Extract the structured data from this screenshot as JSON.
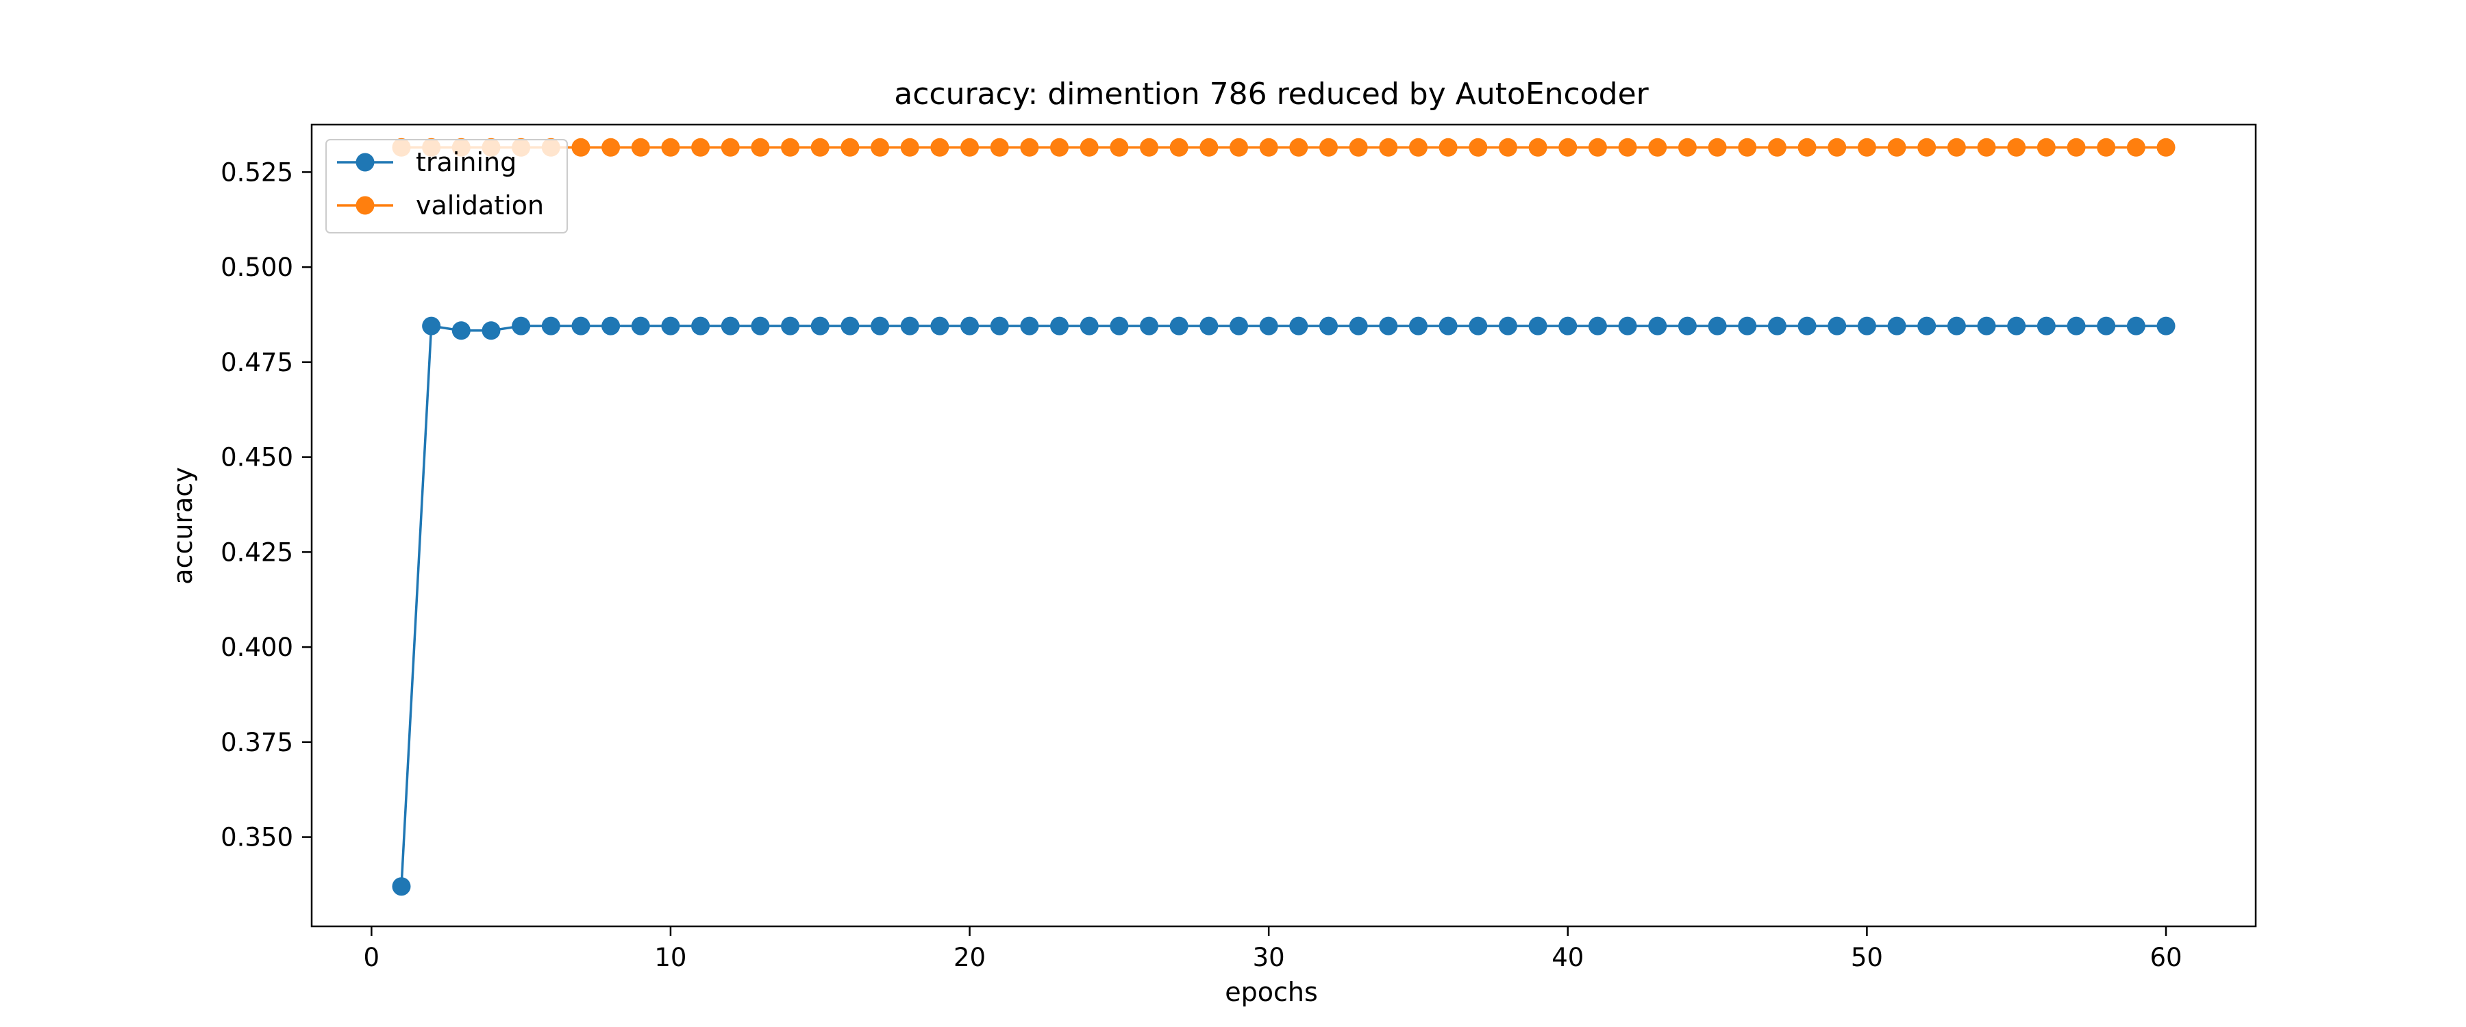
{
  "chart_data": {
    "type": "line",
    "title": "accuracy: dimention 786 reduced by AutoEncoder",
    "xlabel": "epochs",
    "ylabel": "accuracy",
    "xlim": [
      -2,
      63
    ],
    "ylim": [
      0.3265,
      0.5375
    ],
    "xticks": [
      0,
      10,
      20,
      30,
      40,
      50,
      60
    ],
    "xtick_labels": [
      "0",
      "10",
      "20",
      "30",
      "40",
      "50",
      "60"
    ],
    "yticks": [
      0.35,
      0.375,
      0.4,
      0.425,
      0.45,
      0.475,
      0.5,
      0.525
    ],
    "ytick_labels": [
      "0.350",
      "0.375",
      "0.400",
      "0.425",
      "0.450",
      "0.475",
      "0.500",
      "0.525"
    ],
    "grid": false,
    "legend_position": "top-left",
    "markers": true,
    "x": [
      1,
      2,
      3,
      4,
      5,
      6,
      7,
      8,
      9,
      10,
      11,
      12,
      13,
      14,
      15,
      16,
      17,
      18,
      19,
      20,
      21,
      22,
      23,
      24,
      25,
      26,
      27,
      28,
      29,
      30,
      31,
      32,
      33,
      34,
      35,
      36,
      37,
      38,
      39,
      40,
      41,
      42,
      43,
      44,
      45,
      46,
      47,
      48,
      49,
      50,
      51,
      52,
      53,
      54,
      55,
      56,
      57,
      58,
      59,
      60
    ],
    "series": [
      {
        "name": "training",
        "color": "#1f77b4",
        "values": [
          0.337,
          0.4845,
          0.4833,
          0.4833,
          0.4845,
          0.4845,
          0.4845,
          0.4845,
          0.4845,
          0.4845,
          0.4845,
          0.4845,
          0.4845,
          0.4845,
          0.4845,
          0.4845,
          0.4845,
          0.4845,
          0.4845,
          0.4845,
          0.4845,
          0.4845,
          0.4845,
          0.4845,
          0.4845,
          0.4845,
          0.4845,
          0.4845,
          0.4845,
          0.4845,
          0.4845,
          0.4845,
          0.4845,
          0.4845,
          0.4845,
          0.4845,
          0.4845,
          0.4845,
          0.4845,
          0.4845,
          0.4845,
          0.4845,
          0.4845,
          0.4845,
          0.4845,
          0.4845,
          0.4845,
          0.4845,
          0.4845,
          0.4845,
          0.4845,
          0.4845,
          0.4845,
          0.4845,
          0.4845,
          0.4845,
          0.4845,
          0.4845,
          0.4845,
          0.4845
        ]
      },
      {
        "name": "validation",
        "color": "#ff7f0e",
        "values": [
          0.5315,
          0.5315,
          0.5315,
          0.5315,
          0.5315,
          0.5315,
          0.5315,
          0.5315,
          0.5315,
          0.5315,
          0.5315,
          0.5315,
          0.5315,
          0.5315,
          0.5315,
          0.5315,
          0.5315,
          0.5315,
          0.5315,
          0.5315,
          0.5315,
          0.5315,
          0.5315,
          0.5315,
          0.5315,
          0.5315,
          0.5315,
          0.5315,
          0.5315,
          0.5315,
          0.5315,
          0.5315,
          0.5315,
          0.5315,
          0.5315,
          0.5315,
          0.5315,
          0.5315,
          0.5315,
          0.5315,
          0.5315,
          0.5315,
          0.5315,
          0.5315,
          0.5315,
          0.5315,
          0.5315,
          0.5315,
          0.5315,
          0.5315,
          0.5315,
          0.5315,
          0.5315,
          0.5315,
          0.5315,
          0.5315,
          0.5315,
          0.5315,
          0.5315,
          0.5315
        ]
      }
    ]
  }
}
